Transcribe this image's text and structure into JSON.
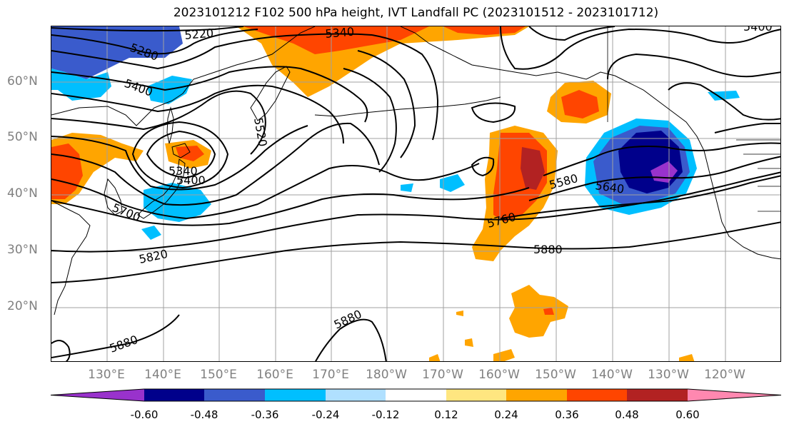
{
  "title": "2023101212 F102 500 hPa height, IVT Landfall PC (2023101512 - 2023101712)",
  "latitude_labels": [
    "60°N",
    "50°N",
    "40°N",
    "30°N",
    "20°N"
  ],
  "longitude_labels": [
    "130°E",
    "140°E",
    "150°E",
    "160°E",
    "170°E",
    "180°W",
    "170°W",
    "160°W",
    "150°W",
    "140°W",
    "130°W",
    "120°W"
  ],
  "contour_labels": [
    "5220",
    "5280",
    "5340",
    "5400",
    "5520",
    "5340",
    "5400",
    "5700",
    "5820",
    "5580",
    "5640",
    "5760",
    "5880",
    "5880",
    "5880",
    "5400"
  ],
  "colorbar": {
    "tick_labels": [
      "-0.60",
      "-0.48",
      "-0.36",
      "-0.24",
      "-0.12",
      "0.12",
      "0.24",
      "0.36",
      "0.48",
      "0.60"
    ],
    "colors": [
      "#9932cc",
      "#00008b",
      "#3a5bcc",
      "#00bfff",
      "#b0e0ff",
      "#ffffff",
      "#ffe680",
      "#ffa500",
      "#ff4500",
      "#b22222",
      "#ff88b0"
    ]
  },
  "colors": {
    "contour": "#000000",
    "coastline": "#000000",
    "gridline": "#a0a0a0",
    "axis_label": "#808080"
  }
}
